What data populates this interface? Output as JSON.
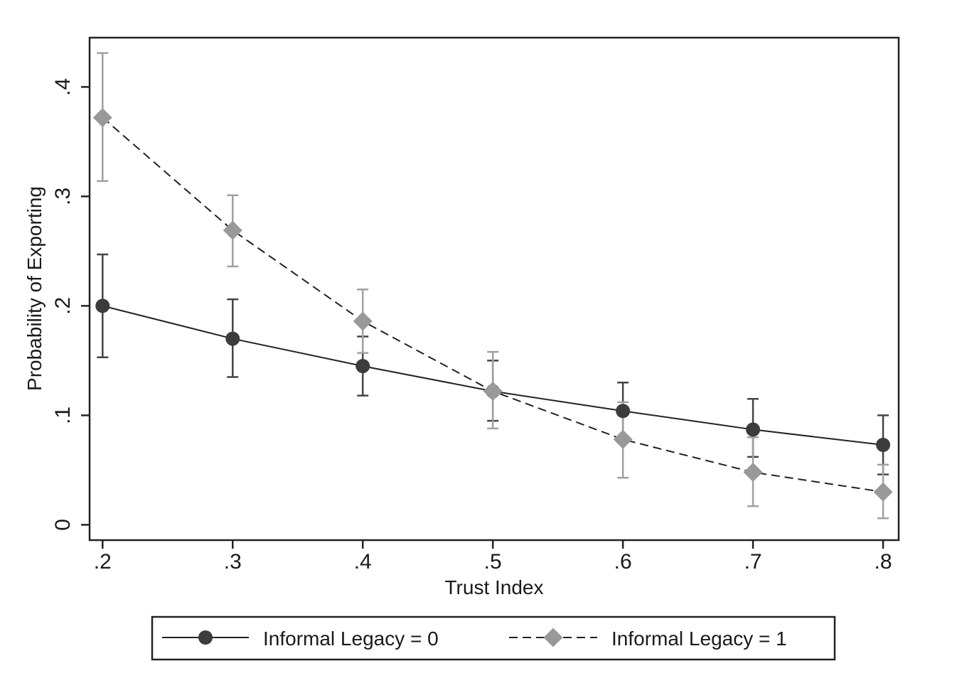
{
  "chart_data": {
    "type": "line",
    "title": "",
    "xlabel": "Trust Index",
    "ylabel": "Probability of Exporting",
    "x": [
      0.2,
      0.3,
      0.4,
      0.5,
      0.6,
      0.7,
      0.8
    ],
    "x_tick_labels": [
      ".2",
      ".3",
      ".4",
      ".5",
      ".6",
      ".7",
      ".8"
    ],
    "y_ticks": [
      0,
      0.1,
      0.2,
      0.3,
      0.4
    ],
    "y_tick_labels": [
      "0",
      ".1",
      ".2",
      ".3",
      ".4"
    ],
    "xlim": [
      0.19,
      0.812
    ],
    "ylim": [
      -0.014,
      0.445
    ],
    "grid": false,
    "legend_position": "bottom",
    "series": [
      {
        "name": "Informal Legacy = 0",
        "line_style": "solid",
        "marker": "circle",
        "color": "#3c3c3c",
        "values": [
          0.2,
          0.17,
          0.145,
          0.122,
          0.104,
          0.087,
          0.073
        ],
        "ci_low": [
          0.153,
          0.135,
          0.118,
          0.095,
          0.08,
          0.062,
          0.046
        ],
        "ci_high": [
          0.247,
          0.206,
          0.172,
          0.15,
          0.13,
          0.115,
          0.1
        ]
      },
      {
        "name": "Informal Legacy = 1",
        "line_style": "dashed",
        "marker": "diamond",
        "color": "#999999",
        "values": [
          0.372,
          0.269,
          0.186,
          0.122,
          0.078,
          0.048,
          0.03
        ],
        "ci_low": [
          0.314,
          0.236,
          0.157,
          0.088,
          0.043,
          0.017,
          0.006
        ],
        "ci_high": [
          0.431,
          0.301,
          0.215,
          0.158,
          0.112,
          0.08,
          0.055
        ]
      }
    ]
  }
}
